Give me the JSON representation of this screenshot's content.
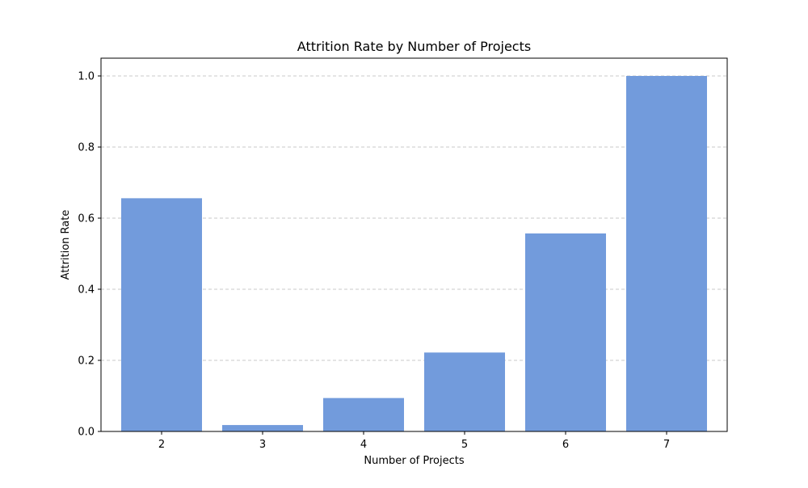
{
  "chart_data": {
    "type": "bar",
    "title": "Attrition Rate by Number of Projects",
    "xlabel": "Number of Projects",
    "ylabel": "Attrition Rate",
    "categories": [
      "2",
      "3",
      "4",
      "5",
      "6",
      "7"
    ],
    "values": [
      0.656,
      0.018,
      0.094,
      0.222,
      0.557,
      1.0
    ],
    "ylim": [
      0,
      1.05
    ],
    "yticks": [
      0.0,
      0.2,
      0.4,
      0.6,
      0.8,
      1.0
    ],
    "ytick_labels": [
      "0.0",
      "0.2",
      "0.4",
      "0.6",
      "0.8",
      "1.0"
    ],
    "grid": "y-dashed",
    "bar_color": "#729bdc",
    "legend": "none"
  }
}
